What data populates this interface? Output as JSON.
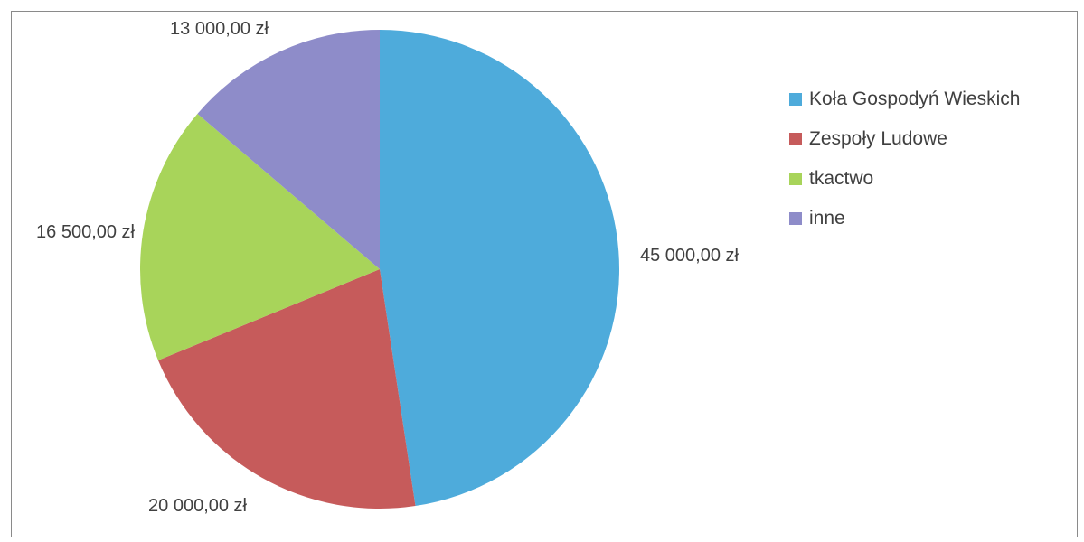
{
  "chart_data": {
    "type": "pie",
    "categories": [
      "Koła Gospodyń Wieskich",
      "Zespoły Ludowe",
      "tkactwo",
      "inne"
    ],
    "values": [
      45000,
      20000,
      16500,
      13000
    ],
    "value_labels": [
      "45 000,00 zł",
      "20 000,00 zł",
      "16 500,00 zł",
      "13 000,00 zł"
    ],
    "colors": [
      "#4EABDB",
      "#C65B5B",
      "#A8D45A",
      "#8E8CC9"
    ],
    "legend": "right",
    "start_angle": "12 o'clock",
    "direction": "clockwise"
  }
}
